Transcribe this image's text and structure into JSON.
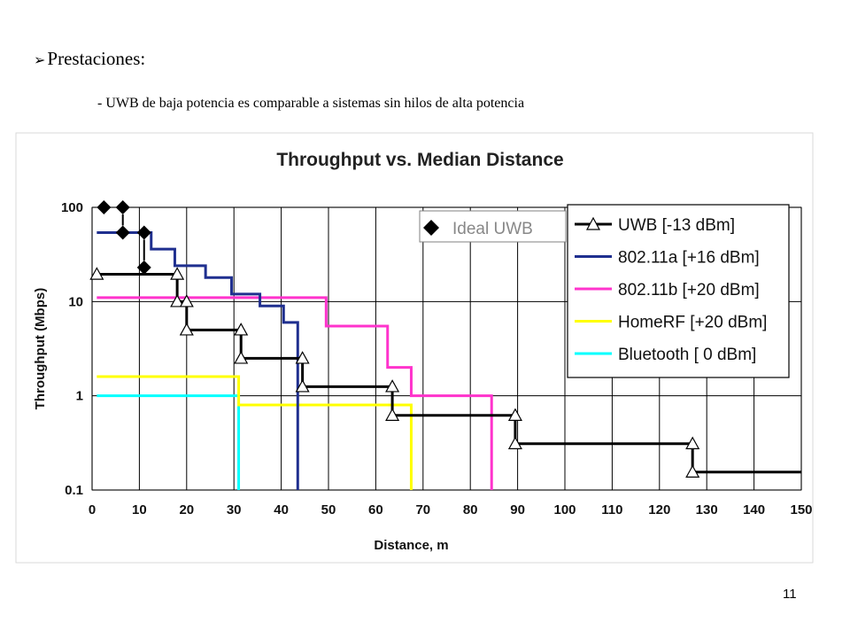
{
  "slide": {
    "heading": "Prestaciones:",
    "bullet_glyph": "➢",
    "subline": "- UWB de baja potencia es comparable a sistemas sin hilos de alta potencia",
    "page_number": "11"
  },
  "chart_data": {
    "type": "line",
    "step": true,
    "title": "Throughput vs. Median Distance",
    "xlabel": "Distance, m",
    "ylabel": "Throughput (Mbps)",
    "xlim": [
      0,
      150
    ],
    "ylim": [
      0.1,
      100
    ],
    "yscale": "log",
    "grid": true,
    "x_ticks": [
      "0",
      "10",
      "20",
      "30",
      "40",
      "50",
      "60",
      "70",
      "80",
      "90",
      "100",
      "110",
      "120",
      "130",
      "140",
      "150"
    ],
    "y_ticks": [
      "100",
      "10",
      "1",
      "0.1"
    ],
    "legend_position": "top-right",
    "series": [
      {
        "name": "UWB",
        "legend_label": "UWB      [-13 dBm]",
        "color": "#000000",
        "marker": "triangle",
        "x": [
          1,
          18,
          18,
          20,
          20,
          31.5,
          31.5,
          44.5,
          44.5,
          63.5,
          63.5,
          89.5,
          89.5,
          127,
          127,
          150
        ],
        "y": [
          19.5,
          19.5,
          10,
          10,
          5,
          5,
          2.5,
          2.5,
          1.25,
          1.25,
          0.62,
          0.62,
          0.31,
          0.31,
          0.155,
          0.155
        ]
      },
      {
        "name": "802.11a",
        "legend_label": "802.11a   [+16 dBm]",
        "color": "#1f2f8f",
        "marker": "none",
        "x": [
          1,
          12.5,
          12.5,
          17.5,
          17.5,
          24,
          24,
          29.5,
          29.5,
          35.5,
          35.5,
          40.5,
          40.5,
          43.5,
          43.5
        ],
        "y": [
          54,
          54,
          36,
          36,
          24,
          24,
          18,
          18,
          12,
          12,
          9,
          9,
          6,
          6,
          0.1
        ]
      },
      {
        "name": "802.11b",
        "legend_label": "802.11b   [+20 dBm]",
        "color": "#ff33cc",
        "marker": "none",
        "x": [
          1,
          49.5,
          49.5,
          62.5,
          62.5,
          67.5,
          67.5,
          84.5,
          84.5
        ],
        "y": [
          11,
          11,
          5.5,
          5.5,
          2,
          2,
          1,
          1,
          0.1
        ]
      },
      {
        "name": "HomeRF",
        "legend_label": "HomeRF  [+20 dBm]",
        "color": "#ffff00",
        "marker": "none",
        "x": [
          1,
          31,
          31,
          67.5,
          67.5
        ],
        "y": [
          1.6,
          1.6,
          0.8,
          0.8,
          0.1
        ]
      },
      {
        "name": "Bluetooth",
        "legend_label": "Bluetooth  [ 0 dBm]",
        "color": "#00ffff",
        "marker": "none",
        "x": [
          1,
          31,
          31
        ],
        "y": [
          1,
          1,
          0.1
        ]
      },
      {
        "name": "Ideal UWB",
        "legend_label": "Ideal UWB",
        "color": "#000000",
        "marker": "diamond",
        "x": [
          2.5,
          6.5,
          6.5,
          11,
          11
        ],
        "y": [
          100,
          100,
          54,
          54,
          23
        ]
      }
    ]
  }
}
